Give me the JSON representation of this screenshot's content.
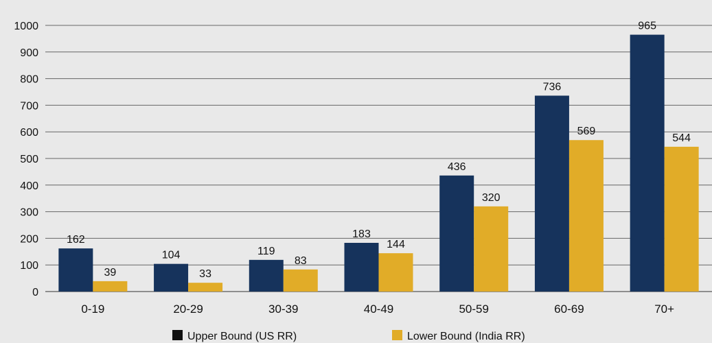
{
  "chart_data": {
    "type": "bar",
    "categories": [
      "0-19",
      "20-29",
      "30-39",
      "40-49",
      "50-59",
      "60-69",
      "70+"
    ],
    "series": [
      {
        "name": "Upper Bound (US RR)",
        "values": [
          162,
          104,
          119,
          183,
          436,
          736,
          965
        ],
        "color": "#16335c"
      },
      {
        "name": "Lower Bound (India RR)",
        "values": [
          39,
          33,
          83,
          144,
          320,
          569,
          544
        ],
        "color": "#e1ac28"
      }
    ],
    "y_ticks": [
      0,
      100,
      200,
      300,
      400,
      500,
      600,
      700,
      800,
      900,
      1000
    ],
    "ylim": [
      0,
      1000
    ],
    "grid": true,
    "legend_position": "bottom",
    "legend_swatch_colors": [
      "#111111",
      "#e1ac28"
    ]
  }
}
